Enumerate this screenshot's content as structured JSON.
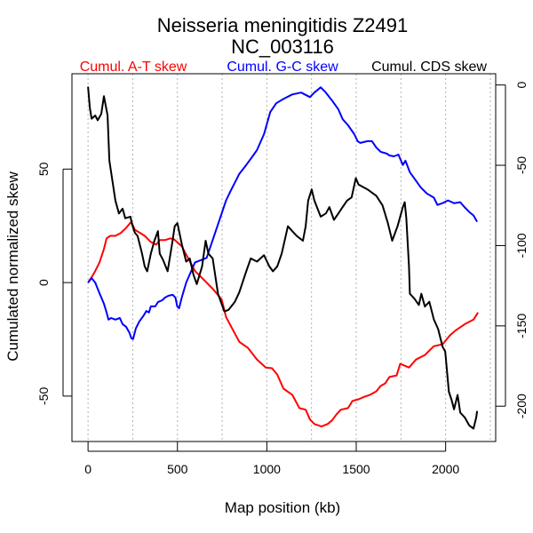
{
  "chart_data": {
    "type": "line",
    "title": "Neisseria meningitidis Z2491",
    "subtitle": "NC_003116",
    "xlabel": "Map position (kb)",
    "ylabel": "Cumulated normalized skew",
    "xlim": [
      -90,
      2280
    ],
    "ylim": [
      -70,
      92
    ],
    "y2lim": [
      -222,
      7
    ],
    "xticks": [
      0,
      500,
      1000,
      1500,
      2000
    ],
    "xtick_labels": [
      "0",
      "500",
      "1000",
      "1500",
      "2000"
    ],
    "yticks": [
      -50,
      0,
      50
    ],
    "ytick_labels": [
      "-50",
      "0",
      "50"
    ],
    "y2ticks": [
      0,
      -50,
      -100,
      -150,
      -200
    ],
    "y2tick_labels": [
      "0",
      "-50",
      "-100",
      "-150",
      "-200"
    ],
    "vgrid": [
      0,
      250,
      500,
      750,
      1000,
      1250,
      1500,
      1750,
      2000,
      2250
    ],
    "grid": "vertical-dotted",
    "legend_position": "top",
    "series": [
      {
        "name": "Cumul. A-T skew",
        "color": "#ff0000",
        "axis": "left",
        "x": [
          0,
          20,
          40,
          64,
          89,
          104,
          124,
          153,
          183,
          213,
          242,
          262,
          292,
          317,
          351,
          381,
          401,
          430,
          460,
          480,
          524,
          559,
          598,
          648,
          697,
          747,
          772,
          806,
          846,
          895,
          945,
          994,
          1029,
          1058,
          1093,
          1142,
          1182,
          1217,
          1241,
          1266,
          1306,
          1340,
          1365,
          1390,
          1414,
          1454,
          1479,
          1513,
          1548,
          1578,
          1612,
          1637,
          1662,
          1686,
          1726,
          1746,
          1795,
          1835,
          1884,
          1934,
          1983,
          2023,
          2057,
          2107,
          2156,
          2181
        ],
        "y": [
          0,
          2.3,
          5.1,
          8.9,
          14.8,
          19.5,
          20.6,
          20.6,
          21.8,
          24.1,
          26.8,
          23.3,
          21.8,
          20.6,
          17.9,
          16.7,
          18.7,
          18.7,
          19.5,
          19.1,
          16,
          10.9,
          5.1,
          1.2,
          -2.7,
          -7.4,
          -15.2,
          -20.2,
          -26.1,
          -28.8,
          -33.9,
          -37.4,
          -37.7,
          -40.5,
          -46.7,
          -49.4,
          -55.3,
          -56,
          -60.3,
          -62.3,
          -63.4,
          -62.3,
          -60.7,
          -58,
          -56,
          -55.3,
          -52.1,
          -51.4,
          -50.2,
          -49.4,
          -47.9,
          -45.5,
          -44.4,
          -41.6,
          -40.9,
          -35.8,
          -37.4,
          -33.9,
          -31.9,
          -28,
          -27.2,
          -23.3,
          -21,
          -18.3,
          -16.3,
          -13.2
        ]
      },
      {
        "name": "Cumul. G-C skew",
        "color": "#0000ff",
        "axis": "left",
        "x": [
          0,
          20,
          40,
          64,
          89,
          104,
          114,
          129,
          153,
          178,
          193,
          213,
          232,
          242,
          252,
          267,
          287,
          312,
          326,
          341,
          351,
          376,
          391,
          415,
          430,
          450,
          474,
          489,
          499,
          509,
          524,
          549,
          598,
          663,
          697,
          747,
          772,
          796,
          846,
          885,
          920,
          945,
          984,
          1019,
          1053,
          1093,
          1142,
          1192,
          1241,
          1266,
          1301,
          1330,
          1365,
          1400,
          1424,
          1454,
          1489,
          1508,
          1523,
          1563,
          1588,
          1612,
          1637,
          1672,
          1686,
          1711,
          1736,
          1761,
          1775,
          1800,
          1825,
          1860,
          1894,
          1934,
          1954,
          1983,
          2013,
          2047,
          2082,
          2107,
          2132,
          2156,
          2176
        ],
        "y": [
          0,
          2,
          0,
          -4.7,
          -9.3,
          -13.2,
          -16.3,
          -15.6,
          -16.3,
          -15.6,
          -18.3,
          -19.5,
          -22.2,
          -24.5,
          -24.9,
          -20.2,
          -17.1,
          -14.4,
          -12.5,
          -13.2,
          -10.5,
          -10.5,
          -8.6,
          -7.8,
          -6.6,
          -5.8,
          -5.4,
          -6.6,
          -10.5,
          -11.3,
          -6.6,
          0,
          8.9,
          10.9,
          18.7,
          30.4,
          36.2,
          40.1,
          47.9,
          51.8,
          55.6,
          58.4,
          65.4,
          75.1,
          79,
          80.9,
          82.9,
          83.7,
          81.7,
          83.7,
          86,
          83.7,
          80.2,
          76.3,
          72,
          69.3,
          65.4,
          62.3,
          61.5,
          62.3,
          62.3,
          59.5,
          57.6,
          56.8,
          56,
          55.6,
          56.4,
          51.8,
          53.7,
          48.6,
          45.9,
          42,
          39.3,
          37.4,
          34.2,
          35,
          36.2,
          35,
          35.4,
          33.1,
          31.1,
          29.6,
          26.8
        ]
      },
      {
        "name": "Cumul. CDS skew",
        "color": "#000000",
        "axis": "right",
        "x": [
          0,
          10,
          20,
          40,
          54,
          74,
          89,
          109,
          119,
          138,
          153,
          173,
          193,
          208,
          237,
          247,
          262,
          277,
          302,
          317,
          331,
          351,
          371,
          391,
          401,
          420,
          445,
          470,
          485,
          500,
          524,
          549,
          569,
          589,
          608,
          638,
          658,
          673,
          697,
          727,
          762,
          786,
          821,
          846,
          885,
          910,
          945,
          984,
          1014,
          1034,
          1058,
          1083,
          1118,
          1142,
          1167,
          1202,
          1217,
          1231,
          1251,
          1266,
          1301,
          1330,
          1350,
          1375,
          1400,
          1424,
          1449,
          1474,
          1498,
          1513,
          1563,
          1612,
          1647,
          1677,
          1701,
          1731,
          1761,
          1771,
          1780,
          1795,
          1800,
          1825,
          1850,
          1864,
          1884,
          1909,
          1934,
          1958,
          1983,
          1998,
          2018,
          2033,
          2047,
          2067,
          2082,
          2107,
          2132,
          2156,
          2171,
          2176
        ],
        "y": [
          -1,
          -14,
          -21,
          -19,
          -22,
          -18,
          -7,
          -19,
          -47,
          -61,
          -72,
          -80,
          -77,
          -83,
          -82,
          -87,
          -92,
          -94,
          -105,
          -113,
          -116,
          -105,
          -97,
          -91,
          -105,
          -109,
          -116,
          -99,
          -88,
          -86,
          -99,
          -110,
          -108,
          -118,
          -124,
          -113,
          -97,
          -105,
          -108,
          -130,
          -141,
          -140,
          -135,
          -129,
          -116,
          -108,
          -110,
          -106,
          -113,
          -116,
          -113,
          -105,
          -88,
          -91,
          -94,
          -97,
          -88,
          -72,
          -65,
          -72,
          -82,
          -80,
          -76,
          -84,
          -80,
          -76,
          -72,
          -70,
          -58,
          -62,
          -65,
          -69,
          -75,
          -86,
          -97,
          -88,
          -76,
          -73,
          -83,
          -113,
          -130,
          -133,
          -137,
          -130,
          -138,
          -135,
          -146,
          -152,
          -163,
          -166,
          -191,
          -196,
          -202,
          -193,
          -204,
          -207,
          -212,
          -214,
          -207,
          -203
        ]
      }
    ]
  }
}
